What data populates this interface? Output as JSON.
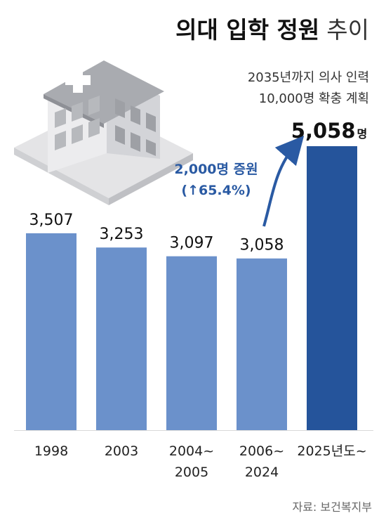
{
  "header": {
    "title_bold": "의대 입학 정원",
    "title_light": "추이",
    "sub_line1": "2035년까지 의사 인력",
    "sub_line2": "10,000명 확충 계획"
  },
  "annotation": {
    "line1": "2,000명 증원",
    "line2": "(↑65.4%)"
  },
  "footer": {
    "source": "자료: 보건복지부"
  },
  "colors": {
    "bar": "#6b91cb",
    "bar_highlight": "#25549b",
    "annotation": "#2a5aa3",
    "baseline": "#d8d8d8"
  },
  "icon": "hospital-building-icon",
  "chart_data": {
    "type": "bar",
    "categories": [
      "1998",
      "2003",
      "2004~\n2005",
      "2006~\n2024",
      "2025년도~"
    ],
    "values": [
      3507,
      3253,
      3097,
      3058,
      5058
    ],
    "value_labels": [
      "3,507",
      "3,253",
      "3,097",
      "3,058",
      "5,058"
    ],
    "value_unit_last": "명",
    "highlight_index": 4,
    "ylim": [
      0,
      5058
    ],
    "grid": false,
    "legend": "none",
    "title": "의대 입학 정원 추이",
    "xlabel": "",
    "ylabel": ""
  }
}
